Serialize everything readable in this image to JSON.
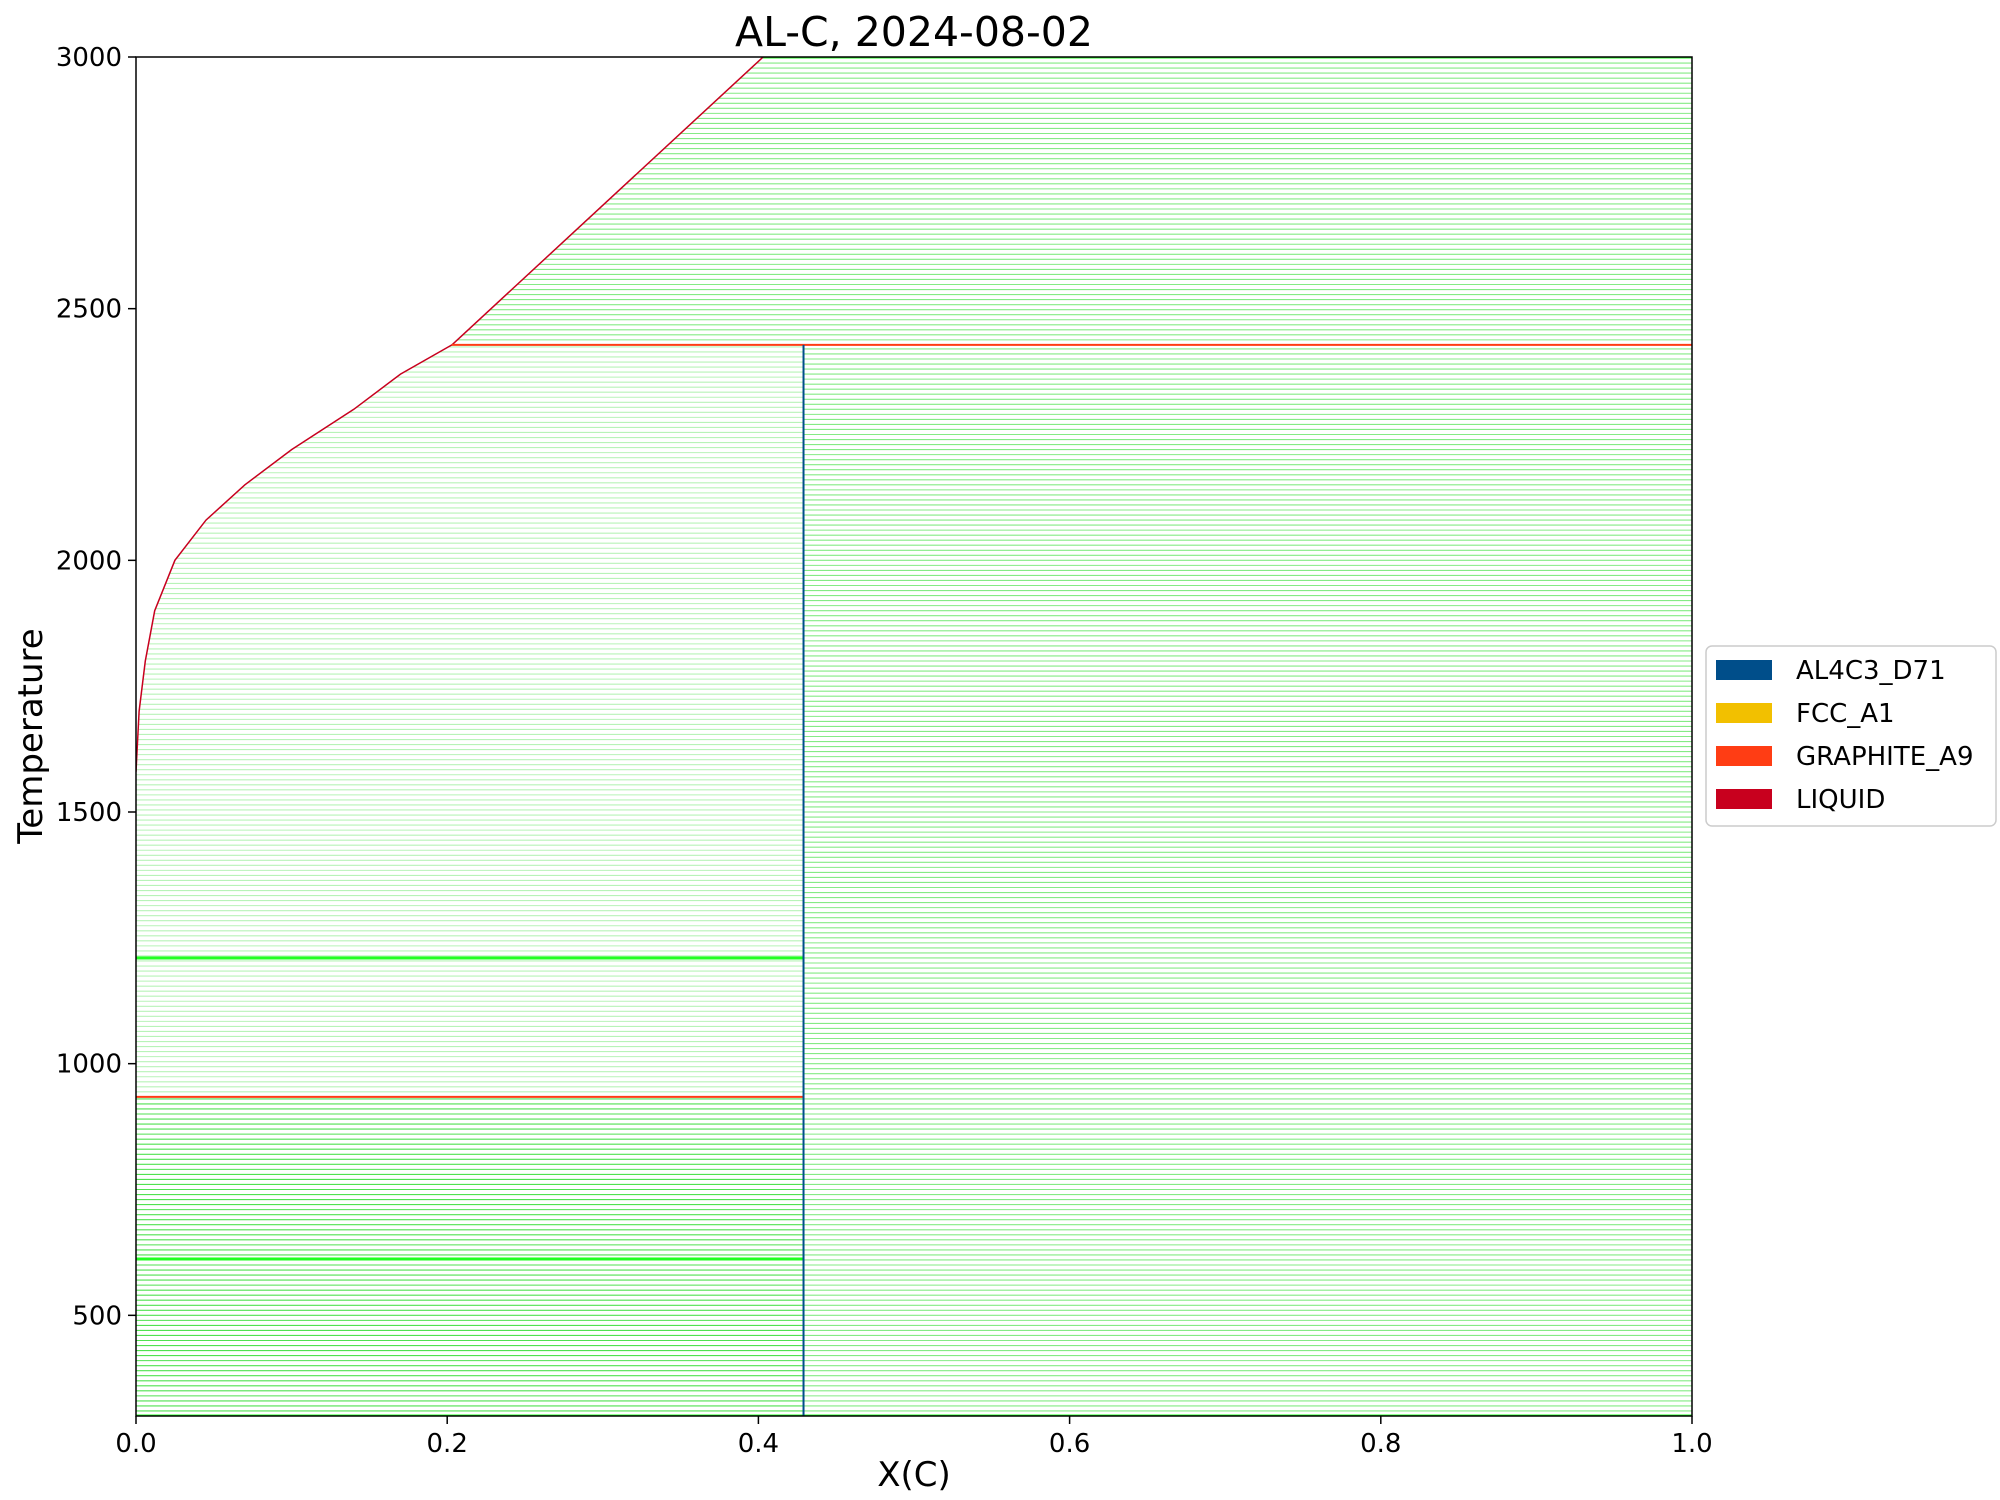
{
  "chart_data": {
    "type": "line",
    "title": "AL-C, 2024-08-02",
    "xlabel": "X(C)",
    "ylabel": "Temperature",
    "xlim": [
      0.0,
      1.0
    ],
    "ylim": [
      300,
      3000
    ],
    "xticks": [
      "0.0",
      "0.2",
      "0.4",
      "0.6",
      "0.8",
      "1.0"
    ],
    "xtick_values": [
      0.0,
      0.2,
      0.4,
      0.6,
      0.8,
      1.0
    ],
    "yticks": [
      "500",
      "1000",
      "1500",
      "2000",
      "2500",
      "3000"
    ],
    "ytick_values": [
      500,
      1000,
      1500,
      2000,
      2500,
      3000
    ],
    "grid": false,
    "legend_position": "right",
    "legend": [
      {
        "name": "AL4C3_D71",
        "color": "#004e8a"
      },
      {
        "name": "FCC_A1",
        "color": "#f2c000"
      },
      {
        "name": "GRAPHITE_A9",
        "color": "#ff3d14"
      },
      {
        "name": "LIQUID",
        "color": "#c8001e"
      }
    ],
    "tieline_color": "#33dd33",
    "tieline_step": 10,
    "phase_boundaries": {
      "liquidus_al_side": {
        "color": "#c8001e",
        "points": [
          [
            0.0,
            1580
          ],
          [
            0.002,
            1700
          ],
          [
            0.006,
            1800
          ],
          [
            0.012,
            1900
          ],
          [
            0.025,
            2000
          ],
          [
            0.045,
            2080
          ],
          [
            0.07,
            2150
          ],
          [
            0.1,
            2220
          ],
          [
            0.14,
            2300
          ],
          [
            0.17,
            2370
          ],
          [
            0.203,
            2428
          ]
        ]
      },
      "liquidus_c_side": {
        "color": "#c8001e",
        "points": [
          [
            0.203,
            2428
          ],
          [
            0.403,
            3000
          ]
        ]
      },
      "peritectic": {
        "color": "#ff3d14",
        "x": [
          0.203,
          1.0
        ],
        "temperature": 2428
      },
      "eutectic": {
        "color": "#ff3d14",
        "x": [
          0.0,
          0.429
        ],
        "temperature": 934
      },
      "al4c3_line": {
        "color": "#004e8a",
        "x": 0.429,
        "temperature": [
          300,
          2428
        ]
      }
    },
    "regions": [
      {
        "x_start": [
          0.0,
          0.429
        ],
        "temperature": [
          300,
          934
        ],
        "density": "dense"
      },
      {
        "x_start": [
          0.0,
          0.429
        ],
        "temperature": [
          934,
          2428
        ],
        "density": "light"
      },
      {
        "x_start": [
          0.429,
          1.0
        ],
        "temperature": [
          300,
          2428
        ],
        "density": "medium"
      },
      {
        "x_start": "liquidus_c_side",
        "temperature": [
          2428,
          3000
        ],
        "density": "medium"
      }
    ],
    "highlight_lines": [
      {
        "temperature": 1210,
        "x": [
          0.0,
          0.429
        ]
      },
      {
        "temperature": 612,
        "x": [
          0.0,
          0.429
        ]
      },
      {
        "temperature": 300,
        "x": [
          0.0,
          1.0
        ]
      },
      {
        "temperature": 3000,
        "x": [
          0.403,
          1.0
        ]
      }
    ]
  }
}
